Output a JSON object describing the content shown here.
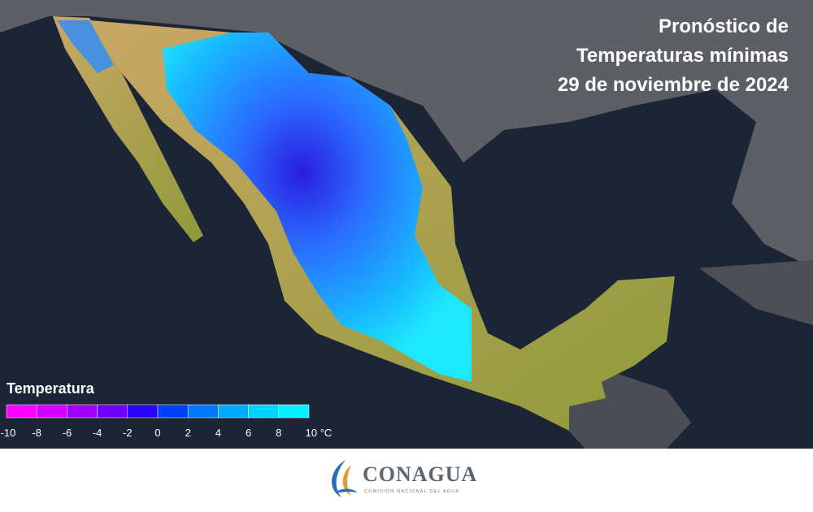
{
  "header": {
    "title_lines": [
      "Pronóstico de",
      "Temperaturas mínimas",
      "29 de noviembre de 2024"
    ]
  },
  "legend": {
    "title": "Temperatura",
    "colors": [
      "#ff00ff",
      "#d400ff",
      "#a000ff",
      "#7000ff",
      "#2a00ff",
      "#0040ff",
      "#0078ff",
      "#00a8ff",
      "#00d2ff",
      "#00f0ff"
    ],
    "ticks": [
      "-10",
      "-8",
      "-6",
      "-4",
      "-2",
      "0",
      "2",
      "4",
      "6",
      "8",
      "10 °C"
    ]
  },
  "footer": {
    "logo": "CONAGUA",
    "logo_subtitle": "COMISIÓN NACIONAL DEL AGUA"
  }
}
